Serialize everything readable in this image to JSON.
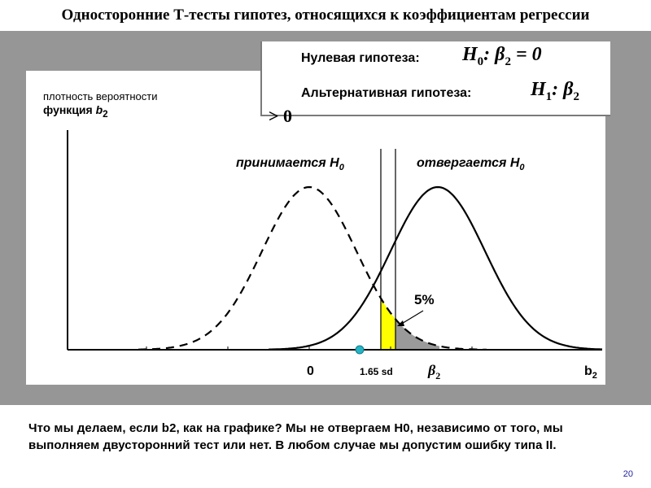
{
  "title": "Односторонние Т-тесты гипотез, относящихся к коэффициентам регрессии",
  "hypotheses": {
    "null_label": "Нулевая гипотеза:",
    "null_formula_H": "H",
    "null_formula_sub": "0",
    "null_formula_rest": ": β",
    "null_formula_sub2": "2",
    "null_formula_end": " = 0",
    "alt_label": "Альтернативная гипотеза:",
    "alt_formula_H": "H",
    "alt_formula_sub": "1",
    "alt_formula_rest": ": β",
    "alt_formula_sub2": "2",
    "alt_continuation": "> 0"
  },
  "y_axis_label_line1": "плотность вероятности",
  "y_axis_label_line2_text": "функция ",
  "y_axis_label_line2_var": "b",
  "y_axis_label_line2_sub": "2",
  "region_accept": "принимается H",
  "region_accept_sub": "0",
  "region_reject": "отвергается H",
  "region_reject_sub": "0",
  "tail_percent": "5%",
  "x_labels": {
    "zero": "0",
    "critical": "1.65 sd",
    "beta": "β",
    "beta_sub": "2",
    "b": "b",
    "b_sub": "2"
  },
  "bottom_text": "Что мы делаем, если b2, как на графике? Мы не отвергаем H0, независимо от того, мы выполняем двусторонний тест или нет. В любом случае мы допустим ошибку типа II.",
  "slide_number": "20",
  "colors": {
    "accept_fill": "#ffff00",
    "tail_fill": "#9a9a9a",
    "marker": "#27b3c4",
    "background": "#969696"
  }
}
